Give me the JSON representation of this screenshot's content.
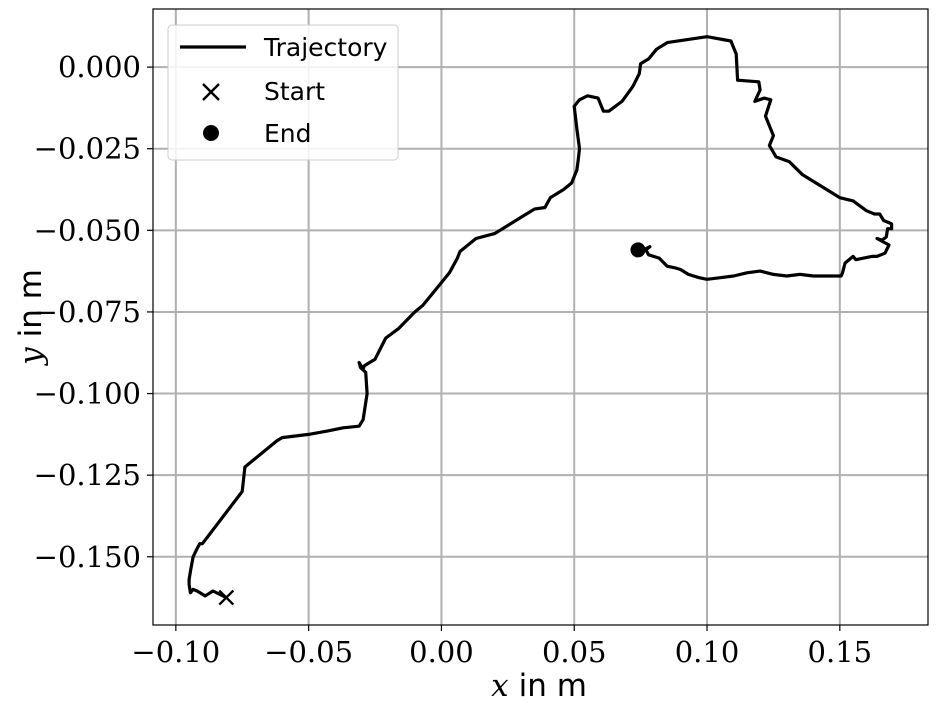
{
  "chart_data": {
    "type": "line",
    "xlabel": {
      "var": "x",
      "unit": "in m"
    },
    "ylabel": {
      "var": "y",
      "unit": "in m"
    },
    "xlim": [
      -0.1086,
      0.1832
    ],
    "ylim": [
      -0.1709,
      0.0178
    ],
    "x_ticks": [
      -0.1,
      -0.05,
      0.0,
      0.05,
      0.1,
      0.15
    ],
    "x_tick_labels": [
      "−0.10",
      "−0.05",
      "0.00",
      "0.05",
      "0.10",
      "0.15"
    ],
    "y_ticks": [
      0.0,
      -0.025,
      -0.05,
      -0.075,
      -0.1,
      -0.125,
      -0.15
    ],
    "y_tick_labels": [
      "0.000",
      "−0.025",
      "−0.050",
      "−0.075",
      "−0.100",
      "−0.125",
      "−0.150"
    ],
    "grid": true,
    "legend": {
      "placement": "top-left",
      "entries": [
        {
          "label": "Trajectory",
          "marker": "line"
        },
        {
          "label": "Start",
          "marker": "x"
        },
        {
          "label": "End",
          "marker": "circle"
        }
      ]
    },
    "series": [
      {
        "name": "Trajectory",
        "color": "#000000",
        "points": [
          [
            -0.081,
            -0.1625
          ],
          [
            -0.083,
            -0.1617
          ],
          [
            -0.086,
            -0.1605
          ],
          [
            -0.088,
            -0.1615
          ],
          [
            -0.089,
            -0.162
          ],
          [
            -0.092,
            -0.1605
          ],
          [
            -0.0935,
            -0.16
          ],
          [
            -0.0945,
            -0.161
          ],
          [
            -0.095,
            -0.1585
          ],
          [
            -0.095,
            -0.157
          ],
          [
            -0.0945,
            -0.1545
          ],
          [
            -0.0935,
            -0.15
          ],
          [
            -0.092,
            -0.1475
          ],
          [
            -0.091,
            -0.146
          ],
          [
            -0.09,
            -0.146
          ],
          [
            -0.075,
            -0.13
          ],
          [
            -0.074,
            -0.1225
          ],
          [
            -0.062,
            -0.1145
          ],
          [
            -0.06,
            -0.1135
          ],
          [
            -0.05,
            -0.1125
          ],
          [
            -0.043,
            -0.1115
          ],
          [
            -0.037,
            -0.1105
          ],
          [
            -0.031,
            -0.11
          ],
          [
            -0.0295,
            -0.108
          ],
          [
            -0.028,
            -0.1
          ],
          [
            -0.0285,
            -0.0935
          ],
          [
            -0.0305,
            -0.092
          ],
          [
            -0.031,
            -0.0905
          ],
          [
            -0.0295,
            -0.0925
          ],
          [
            -0.029,
            -0.0915
          ],
          [
            -0.025,
            -0.0895
          ],
          [
            -0.021,
            -0.083
          ],
          [
            -0.016,
            -0.08
          ],
          [
            -0.01,
            -0.075
          ],
          [
            -0.007,
            -0.073
          ],
          [
            -0.002,
            -0.068
          ],
          [
            0.003,
            -0.063
          ],
          [
            0.006,
            -0.0585
          ],
          [
            0.007,
            -0.0565
          ],
          [
            0.013,
            -0.0525
          ],
          [
            0.02,
            -0.051
          ],
          [
            0.03,
            -0.046
          ],
          [
            0.035,
            -0.0435
          ],
          [
            0.039,
            -0.043
          ],
          [
            0.041,
            -0.04
          ],
          [
            0.046,
            -0.0375
          ],
          [
            0.049,
            -0.0355
          ],
          [
            0.051,
            -0.0315
          ],
          [
            0.0515,
            -0.0285
          ],
          [
            0.052,
            -0.025
          ],
          [
            0.051,
            -0.019
          ],
          [
            0.05,
            -0.012
          ],
          [
            0.052,
            -0.01
          ],
          [
            0.055,
            -0.0088
          ],
          [
            0.059,
            -0.0095
          ],
          [
            0.061,
            -0.0135
          ],
          [
            0.063,
            -0.0135
          ],
          [
            0.068,
            -0.0105
          ],
          [
            0.072,
            -0.006
          ],
          [
            0.0745,
            -0.002
          ],
          [
            0.075,
            0.001
          ],
          [
            0.078,
            0.0025
          ],
          [
            0.081,
            0.0055
          ],
          [
            0.085,
            0.0075
          ],
          [
            0.1,
            0.0093
          ],
          [
            0.109,
            0.008
          ],
          [
            0.111,
            0.004
          ],
          [
            0.1115,
            -0.004
          ],
          [
            0.1195,
            -0.0045
          ],
          [
            0.12,
            -0.007
          ],
          [
            0.118,
            -0.0105
          ],
          [
            0.1215,
            -0.0095
          ],
          [
            0.124,
            -0.01
          ],
          [
            0.122,
            -0.015
          ],
          [
            0.125,
            -0.021
          ],
          [
            0.1235,
            -0.024
          ],
          [
            0.126,
            -0.0275
          ],
          [
            0.131,
            -0.029
          ],
          [
            0.136,
            -0.033
          ],
          [
            0.148,
            -0.039
          ],
          [
            0.15,
            -0.04
          ],
          [
            0.155,
            -0.041
          ],
          [
            0.16,
            -0.044
          ],
          [
            0.163,
            -0.045
          ],
          [
            0.165,
            -0.045
          ],
          [
            0.1665,
            -0.047
          ],
          [
            0.1695,
            -0.048
          ],
          [
            0.1695,
            -0.0495
          ],
          [
            0.168,
            -0.0495
          ],
          [
            0.1675,
            -0.052
          ],
          [
            0.166,
            -0.053
          ],
          [
            0.164,
            -0.0525
          ],
          [
            0.1685,
            -0.0545
          ],
          [
            0.167,
            -0.057
          ],
          [
            0.164,
            -0.058
          ],
          [
            0.162,
            -0.058
          ],
          [
            0.156,
            -0.059
          ],
          [
            0.155,
            -0.058
          ],
          [
            0.152,
            -0.06
          ],
          [
            0.151,
            -0.063
          ],
          [
            0.1505,
            -0.064
          ],
          [
            0.145,
            -0.064
          ],
          [
            0.14,
            -0.064
          ],
          [
            0.135,
            -0.0635
          ],
          [
            0.13,
            -0.064
          ],
          [
            0.125,
            -0.0635
          ],
          [
            0.12,
            -0.0625
          ],
          [
            0.115,
            -0.063
          ],
          [
            0.11,
            -0.064
          ],
          [
            0.105,
            -0.0645
          ],
          [
            0.1,
            -0.065
          ],
          [
            0.097,
            -0.0645
          ],
          [
            0.093,
            -0.0635
          ],
          [
            0.09,
            -0.062
          ],
          [
            0.088,
            -0.0615
          ],
          [
            0.085,
            -0.061
          ],
          [
            0.082,
            -0.0585
          ],
          [
            0.078,
            -0.0575
          ],
          [
            0.077,
            -0.056
          ],
          [
            0.0785,
            -0.055
          ],
          [
            0.076,
            -0.056
          ],
          [
            0.074,
            -0.056
          ]
        ]
      }
    ],
    "start": [
      -0.081,
      -0.1625
    ],
    "end": [
      0.074,
      -0.056
    ]
  }
}
